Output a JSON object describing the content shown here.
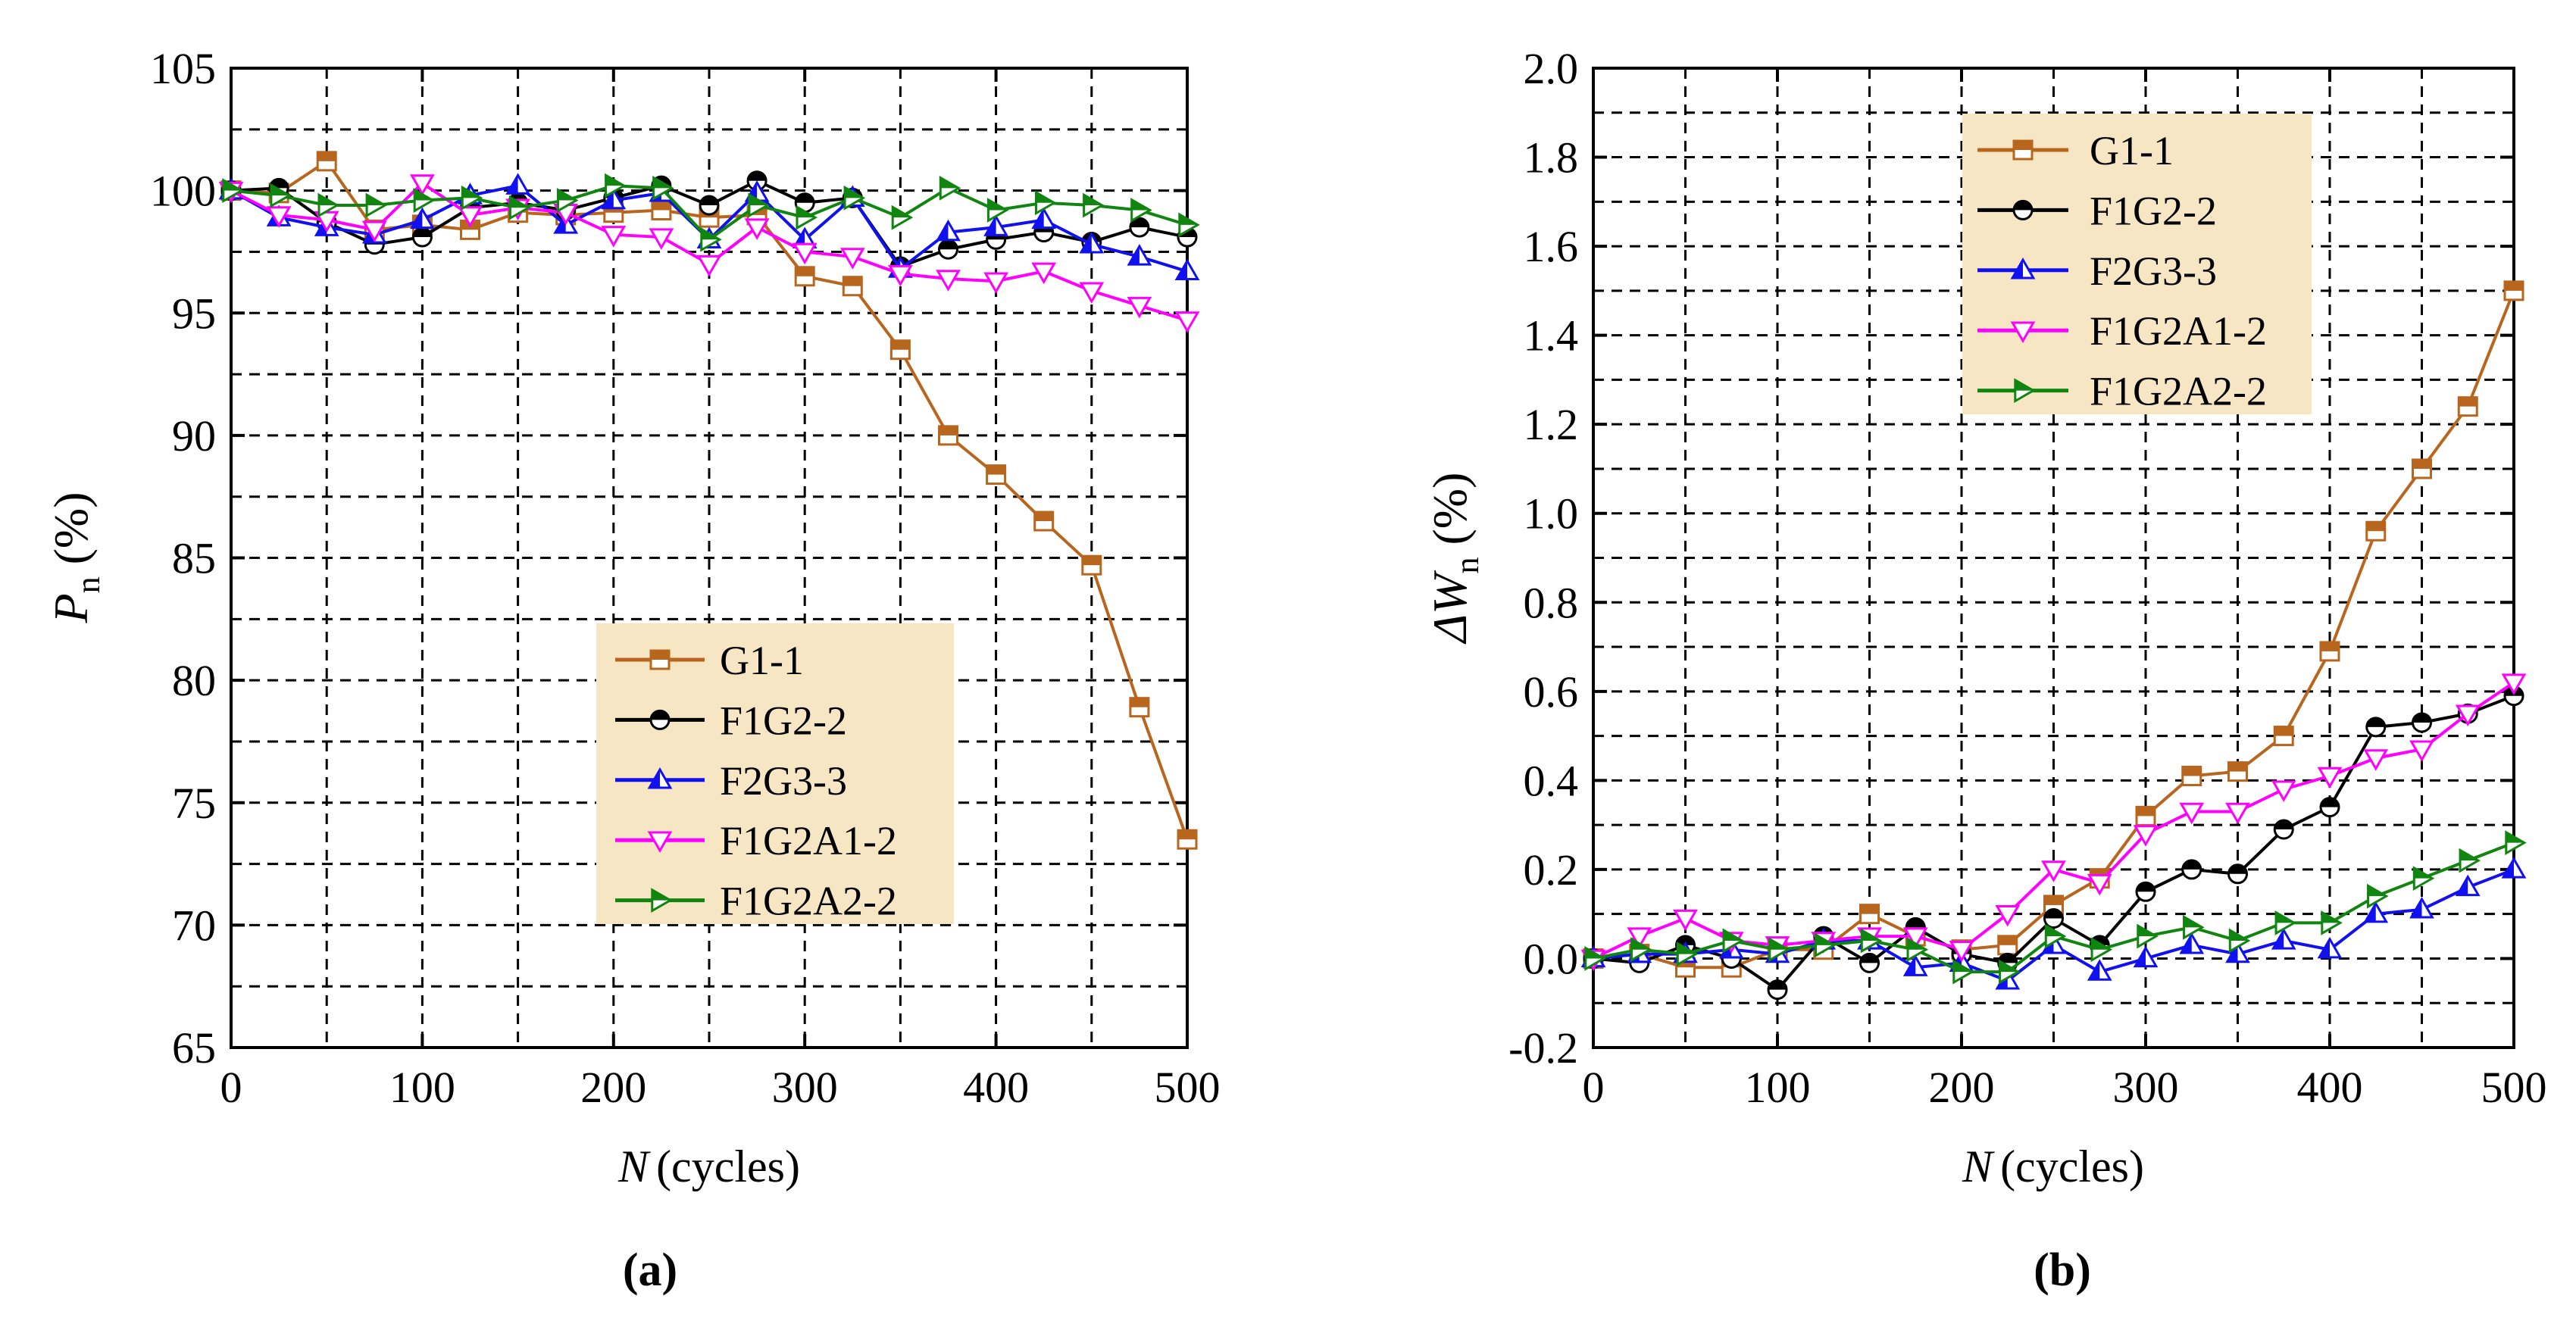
{
  "figure": {
    "panel_labels": [
      "(a)",
      "(b)"
    ]
  },
  "chart_data": [
    {
      "type": "line",
      "panel": "a",
      "xlabel_var": "N",
      "xlabel_unit": "(cycles)",
      "ylabel_var": "P",
      "ylabel_sub": "n",
      "ylabel_unit": "(%)",
      "xlim": [
        0,
        500
      ],
      "ylim": [
        65,
        105
      ],
      "xticks": [
        0,
        100,
        200,
        300,
        400,
        500
      ],
      "xtick_labels": [
        "0",
        "100",
        "200",
        "300",
        "400",
        "500"
      ],
      "yticks": [
        65,
        70,
        75,
        80,
        85,
        90,
        95,
        100,
        105
      ],
      "ytick_labels": [
        "65",
        "70",
        "75",
        "80",
        "85",
        "90",
        "95",
        "100",
        "105"
      ],
      "grid": true,
      "legend_position": "lower-center",
      "x": [
        0,
        25,
        50,
        75,
        100,
        125,
        150,
        175,
        200,
        225,
        250,
        275,
        300,
        325,
        350,
        375,
        400,
        425,
        450,
        475,
        500
      ],
      "series": [
        {
          "name": "G1-1",
          "color": "#B8651E",
          "marker": "square-half",
          "values": [
            100,
            99.9,
            101.2,
            98.4,
            98.6,
            98.4,
            99.1,
            99.0,
            99.1,
            99.2,
            98.9,
            99.0,
            96.5,
            96.1,
            93.5,
            90.0,
            88.4,
            86.5,
            84.7,
            78.9,
            73.5
          ]
        },
        {
          "name": "F1G2-2",
          "color": "#000000",
          "marker": "circle-half",
          "values": [
            100,
            100.1,
            98.7,
            97.8,
            98.1,
            99.3,
            99.5,
            99.2,
            99.7,
            100.2,
            99.4,
            100.4,
            99.5,
            99.7,
            96.9,
            97.6,
            98.0,
            98.3,
            97.9,
            98.5,
            98.1
          ]
        },
        {
          "name": "F2G3-3",
          "color": "#1010F0",
          "marker": "triangle-up-half",
          "values": [
            100,
            98.9,
            98.5,
            98.2,
            98.8,
            99.8,
            100.2,
            98.6,
            99.6,
            99.9,
            98.0,
            99.9,
            98.0,
            99.7,
            96.8,
            98.3,
            98.5,
            98.8,
            97.8,
            97.3,
            96.7
          ]
        },
        {
          "name": "F1G2A1-2",
          "color": "#FF00FF",
          "marker": "triangle-down-half",
          "values": [
            100,
            99.0,
            98.8,
            98.4,
            100.3,
            99.0,
            99.3,
            99.1,
            98.2,
            98.1,
            97.0,
            98.5,
            97.5,
            97.3,
            96.6,
            96.4,
            96.3,
            96.7,
            95.9,
            95.3,
            94.7
          ]
        },
        {
          "name": "F1G2A2-2",
          "color": "#108510",
          "marker": "triangle-right-half",
          "values": [
            100,
            99.8,
            99.4,
            99.4,
            99.6,
            99.7,
            99.3,
            99.6,
            100.2,
            100.1,
            98.0,
            99.4,
            98.9,
            99.7,
            98.9,
            100.1,
            99.2,
            99.5,
            99.4,
            99.2,
            98.6
          ]
        }
      ]
    },
    {
      "type": "line",
      "panel": "b",
      "xlabel_var": "N",
      "xlabel_unit": "(cycles)",
      "ylabel_var": "ΔW",
      "ylabel_sub": "n",
      "ylabel_unit": "(%)",
      "xlim": [
        0,
        500
      ],
      "ylim": [
        -0.2,
        2.0
      ],
      "xticks": [
        0,
        100,
        200,
        300,
        400,
        500
      ],
      "xtick_labels": [
        "0",
        "100",
        "200",
        "300",
        "400",
        "500"
      ],
      "yticks": [
        -0.2,
        0.0,
        0.2,
        0.4,
        0.6,
        0.8,
        1.0,
        1.2,
        1.4,
        1.6,
        1.8,
        2.0
      ],
      "ytick_labels": [
        "-0.2",
        "0.0",
        "0.2",
        "0.4",
        "0.6",
        "0.8",
        "1.0",
        "1.2",
        "1.4",
        "1.6",
        "1.8",
        "2.0"
      ],
      "grid": true,
      "legend_position": "top-left",
      "x": [
        0,
        25,
        50,
        75,
        100,
        125,
        150,
        175,
        200,
        225,
        250,
        275,
        300,
        325,
        350,
        375,
        400,
        425,
        450,
        475,
        500
      ],
      "series": [
        {
          "name": "G1-1",
          "color": "#B8651E",
          "marker": "square-half",
          "values": [
            0.0,
            0.01,
            -0.02,
            -0.02,
            0.02,
            0.02,
            0.1,
            0.05,
            0.02,
            0.03,
            0.12,
            0.18,
            0.32,
            0.41,
            0.42,
            0.5,
            0.69,
            0.96,
            1.1,
            1.24,
            1.5
          ]
        },
        {
          "name": "F1G2-2",
          "color": "#000000",
          "marker": "circle-half",
          "values": [
            0.0,
            -0.01,
            0.03,
            0.0,
            -0.07,
            0.05,
            -0.01,
            0.07,
            0.01,
            -0.01,
            0.09,
            0.03,
            0.15,
            0.2,
            0.19,
            0.29,
            0.34,
            0.52,
            0.53,
            0.55,
            0.59
          ]
        },
        {
          "name": "F2G3-3",
          "color": "#1010F0",
          "marker": "triangle-up-half",
          "values": [
            0.0,
            0.01,
            0.01,
            0.02,
            0.01,
            0.04,
            0.04,
            -0.02,
            -0.01,
            -0.05,
            0.03,
            -0.03,
            0.0,
            0.03,
            0.01,
            0.04,
            0.02,
            0.1,
            0.11,
            0.16,
            0.2
          ]
        },
        {
          "name": "F1G2A1-2",
          "color": "#FF00FF",
          "marker": "triangle-down-half",
          "values": [
            0.0,
            0.05,
            0.09,
            0.04,
            0.03,
            0.04,
            0.05,
            0.05,
            0.02,
            0.1,
            0.2,
            0.17,
            0.28,
            0.33,
            0.33,
            0.38,
            0.41,
            0.45,
            0.47,
            0.55,
            0.62
          ]
        },
        {
          "name": "F1G2A2-2",
          "color": "#108510",
          "marker": "triangle-right-half",
          "values": [
            0.0,
            0.02,
            0.01,
            0.04,
            0.02,
            0.03,
            0.04,
            0.02,
            -0.03,
            -0.03,
            0.05,
            0.02,
            0.05,
            0.07,
            0.04,
            0.08,
            0.08,
            0.14,
            0.18,
            0.22,
            0.26
          ]
        }
      ]
    }
  ]
}
